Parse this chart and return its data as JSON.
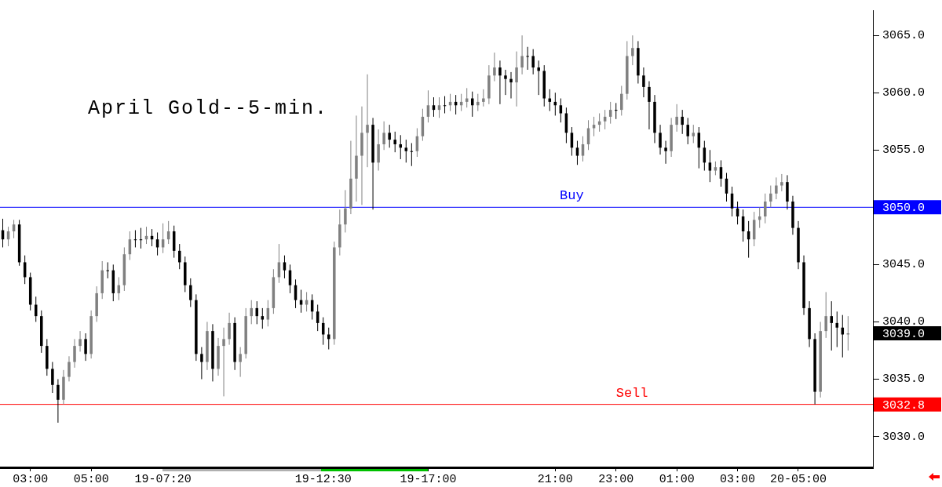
{
  "chart_data": {
    "type": "candlestick",
    "title": "April Gold--5-min.",
    "categories": [
      null,
      null,
      null,
      null,
      null,
      "03:00",
      null,
      null,
      null,
      null,
      null,
      null,
      null,
      null,
      null,
      null,
      "05:00",
      null,
      null,
      null,
      null,
      null,
      null,
      null,
      null,
      null,
      null,
      null,
      null,
      "19-07:20",
      null,
      null,
      null,
      null,
      null,
      null,
      null,
      null,
      null,
      null,
      null,
      null,
      null,
      null,
      null,
      null,
      null,
      null,
      null,
      null,
      null,
      null,
      null,
      null,
      null,
      null,
      null,
      null,
      "19-12:30",
      null,
      null,
      null,
      null,
      null,
      null,
      null,
      null,
      null,
      null,
      null,
      null,
      null,
      null,
      null,
      null,
      null,
      null,
      "19-17:00",
      null,
      null,
      null,
      null,
      null,
      null,
      null,
      null,
      null,
      null,
      null,
      null,
      null,
      null,
      null,
      null,
      null,
      null,
      null,
      null,
      null,
      null,
      "21:00",
      null,
      null,
      null,
      null,
      null,
      null,
      null,
      null,
      null,
      null,
      "23:00",
      null,
      null,
      null,
      null,
      null,
      null,
      null,
      null,
      null,
      null,
      "01:00",
      null,
      null,
      null,
      null,
      null,
      null,
      null,
      null,
      null,
      null,
      "03:00",
      null,
      null,
      null,
      null,
      null,
      null,
      null,
      null,
      null,
      null,
      "20-05:00",
      null,
      null,
      null,
      null,
      null,
      null,
      null,
      null,
      null,
      null,
      null,
      null,
      null
    ],
    "ohlc": [
      [
        3048.0,
        3049.0,
        3046.5,
        3047.2
      ],
      [
        3047.2,
        3048.3,
        3046.6,
        3047.9
      ],
      [
        3047.9,
        3048.9,
        3047.3,
        3048.5
      ],
      [
        3048.5,
        3048.9,
        3044.9,
        3045.2
      ],
      [
        3045.2,
        3045.8,
        3043.3,
        3043.9
      ],
      [
        3043.9,
        3044.3,
        3041.0,
        3041.5
      ],
      [
        3041.5,
        3042.2,
        3040.0,
        3040.5
      ],
      [
        3040.5,
        3041.0,
        3037.3,
        3037.9
      ],
      [
        3037.9,
        3038.5,
        3035.3,
        3035.9
      ],
      [
        3035.9,
        3036.5,
        3033.8,
        3034.5
      ],
      [
        3034.5,
        3035.0,
        3031.2,
        3033.2
      ],
      [
        3033.2,
        3035.8,
        3032.8,
        3035.2
      ],
      [
        3035.2,
        3037.0,
        3034.8,
        3036.5
      ],
      [
        3036.5,
        3038.5,
        3036.0,
        3037.9
      ],
      [
        3037.9,
        3039.2,
        3037.4,
        3038.5
      ],
      [
        3038.5,
        3039.0,
        3036.6,
        3037.2
      ],
      [
        3037.2,
        3041.0,
        3036.8,
        3040.5
      ],
      [
        3040.5,
        3043.1,
        3040.0,
        3042.5
      ],
      [
        3042.5,
        3045.3,
        3042.0,
        3044.5
      ],
      [
        3044.5,
        3045.2,
        3043.8,
        3044.5
      ],
      [
        3044.5,
        3045.0,
        3041.8,
        3042.5
      ],
      [
        3042.5,
        3043.9,
        3041.9,
        3043.2
      ],
      [
        3043.2,
        3046.5,
        3042.7,
        3045.9
      ],
      [
        3045.9,
        3047.9,
        3045.4,
        3047.2
      ],
      [
        3047.2,
        3048.0,
        3046.5,
        3047.2
      ],
      [
        3047.2,
        3048.2,
        3046.4,
        3047.2
      ],
      [
        3047.2,
        3048.3,
        3046.8,
        3047.5
      ],
      [
        3047.5,
        3048.1,
        3046.6,
        3047.2
      ],
      [
        3047.2,
        3047.8,
        3045.8,
        3046.5
      ],
      [
        3046.5,
        3048.6,
        3046.0,
        3047.2
      ],
      [
        3047.2,
        3048.8,
        3046.8,
        3047.9
      ],
      [
        3047.9,
        3048.4,
        3045.6,
        3046.2
      ],
      [
        3046.2,
        3046.8,
        3044.6,
        3045.2
      ],
      [
        3045.2,
        3045.7,
        3042.6,
        3043.2
      ],
      [
        3043.2,
        3043.8,
        3041.3,
        3041.9
      ],
      [
        3041.9,
        3042.4,
        3036.6,
        3037.2
      ],
      [
        3037.2,
        3037.8,
        3035.0,
        3036.5
      ],
      [
        3036.5,
        3040.0,
        3035.8,
        3039.2
      ],
      [
        3039.2,
        3039.8,
        3034.8,
        3035.9
      ],
      [
        3035.9,
        3038.6,
        3035.3,
        3037.9
      ],
      [
        3037.9,
        3039.5,
        3033.5,
        3038.5
      ],
      [
        3038.5,
        3040.8,
        3038.0,
        3039.9
      ],
      [
        3039.9,
        3040.4,
        3035.8,
        3036.5
      ],
      [
        3036.5,
        3037.8,
        3035.2,
        3037.2
      ],
      [
        3037.2,
        3041.2,
        3036.8,
        3040.5
      ],
      [
        3040.5,
        3041.9,
        3039.8,
        3041.2
      ],
      [
        3041.2,
        3041.8,
        3039.8,
        3040.5
      ],
      [
        3040.5,
        3041.2,
        3039.4,
        3040.2
      ],
      [
        3040.2,
        3041.9,
        3039.6,
        3041.2
      ],
      [
        3041.2,
        3044.6,
        3040.7,
        3043.9
      ],
      [
        3043.9,
        3046.8,
        3043.4,
        3045.2
      ],
      [
        3045.2,
        3045.8,
        3043.8,
        3044.5
      ],
      [
        3044.5,
        3045.0,
        3042.5,
        3043.2
      ],
      [
        3043.2,
        3043.7,
        3041.2,
        3041.9
      ],
      [
        3041.9,
        3042.8,
        3040.8,
        3041.5
      ],
      [
        3041.5,
        3042.6,
        3040.9,
        3041.9
      ],
      [
        3041.9,
        3042.4,
        3040.2,
        3040.9
      ],
      [
        3040.9,
        3041.5,
        3039.2,
        3039.9
      ],
      [
        3039.9,
        3040.4,
        3038.0,
        3038.9
      ],
      [
        3038.9,
        3039.5,
        3037.6,
        3038.5
      ],
      [
        3038.5,
        3047.0,
        3038.0,
        3046.5
      ],
      [
        3046.5,
        3049.8,
        3045.8,
        3048.5
      ],
      [
        3048.5,
        3051.5,
        3047.8,
        3049.9
      ],
      [
        3049.9,
        3055.8,
        3049.4,
        3052.5
      ],
      [
        3052.5,
        3058.0,
        3050.5,
        3054.5
      ],
      [
        3054.5,
        3058.8,
        3050.2,
        3056.5
      ],
      [
        3056.5,
        3061.6,
        3053.5,
        3057.2
      ],
      [
        3057.2,
        3057.8,
        3049.8,
        3053.9
      ],
      [
        3053.9,
        3056.8,
        3053.2,
        3055.5
      ],
      [
        3055.5,
        3057.5,
        3055.0,
        3056.5
      ],
      [
        3056.5,
        3057.2,
        3055.2,
        3055.9
      ],
      [
        3055.9,
        3056.6,
        3054.8,
        3055.5
      ],
      [
        3055.5,
        3056.3,
        3054.2,
        3055.2
      ],
      [
        3055.2,
        3055.9,
        3053.9,
        3054.9
      ],
      [
        3054.9,
        3055.6,
        3053.6,
        3054.9
      ],
      [
        3054.9,
        3056.9,
        3054.4,
        3056.2
      ],
      [
        3056.2,
        3058.6,
        3055.8,
        3057.9
      ],
      [
        3057.9,
        3060.2,
        3057.4,
        3058.9
      ],
      [
        3058.9,
        3059.6,
        3057.9,
        3058.5
      ],
      [
        3058.5,
        3059.6,
        3057.8,
        3058.9
      ],
      [
        3058.9,
        3059.7,
        3058.2,
        3058.9
      ],
      [
        3058.9,
        3059.9,
        3058.4,
        3059.2
      ],
      [
        3059.2,
        3059.8,
        3058.1,
        3058.9
      ],
      [
        3058.9,
        3059.9,
        3058.4,
        3059.2
      ],
      [
        3059.2,
        3060.4,
        3058.7,
        3059.5
      ],
      [
        3059.5,
        3060.1,
        3057.9,
        3058.9
      ],
      [
        3058.9,
        3059.9,
        3058.4,
        3059.2
      ],
      [
        3059.2,
        3060.3,
        3058.8,
        3059.5
      ],
      [
        3059.5,
        3062.4,
        3059.0,
        3061.5
      ],
      [
        3061.5,
        3063.5,
        3061.0,
        3062.2
      ],
      [
        3062.2,
        3062.8,
        3059.0,
        3061.5
      ],
      [
        3061.5,
        3062.0,
        3059.8,
        3061.2
      ],
      [
        3061.2,
        3061.8,
        3059.5,
        3060.9
      ],
      [
        3060.9,
        3063.6,
        3058.8,
        3062.2
      ],
      [
        3062.2,
        3065.0,
        3061.6,
        3063.2
      ],
      [
        3063.2,
        3064.0,
        3062.0,
        3063.2
      ],
      [
        3063.2,
        3063.8,
        3061.6,
        3062.2
      ],
      [
        3062.2,
        3062.8,
        3059.8,
        3061.9
      ],
      [
        3061.9,
        3062.4,
        3058.8,
        3059.5
      ],
      [
        3059.5,
        3060.3,
        3058.4,
        3059.2
      ],
      [
        3059.2,
        3060.0,
        3058.0,
        3058.9
      ],
      [
        3058.9,
        3059.5,
        3057.4,
        3058.2
      ],
      [
        3058.2,
        3058.7,
        3055.6,
        3056.5
      ],
      [
        3056.5,
        3057.0,
        3054.5,
        3055.2
      ],
      [
        3055.2,
        3055.8,
        3053.7,
        3054.5
      ],
      [
        3054.5,
        3056.2,
        3054.0,
        3055.5
      ],
      [
        3055.5,
        3057.6,
        3055.0,
        3056.9
      ],
      [
        3056.9,
        3057.9,
        3056.2,
        3057.2
      ],
      [
        3057.2,
        3058.2,
        3056.6,
        3057.5
      ],
      [
        3057.5,
        3058.5,
        3056.8,
        3057.9
      ],
      [
        3057.9,
        3059.2,
        3057.3,
        3058.5
      ],
      [
        3058.5,
        3059.1,
        3057.7,
        3058.5
      ],
      [
        3058.5,
        3060.6,
        3058.0,
        3059.9
      ],
      [
        3059.9,
        3064.5,
        3059.4,
        3063.2
      ],
      [
        3063.2,
        3065.0,
        3062.4,
        3063.9
      ],
      [
        3063.9,
        3064.5,
        3060.8,
        3061.5
      ],
      [
        3061.5,
        3062.2,
        3059.6,
        3060.5
      ],
      [
        3060.5,
        3061.0,
        3056.8,
        3059.2
      ],
      [
        3059.2,
        3059.8,
        3055.6,
        3056.5
      ],
      [
        3056.5,
        3057.2,
        3054.6,
        3055.2
      ],
      [
        3055.2,
        3055.8,
        3053.8,
        3054.9
      ],
      [
        3054.9,
        3057.8,
        3054.4,
        3057.2
      ],
      [
        3057.2,
        3059.0,
        3056.6,
        3057.9
      ],
      [
        3057.9,
        3058.5,
        3056.4,
        3057.2
      ],
      [
        3057.2,
        3057.8,
        3055.5,
        3056.2
      ],
      [
        3056.2,
        3057.2,
        3055.6,
        3056.5
      ],
      [
        3056.5,
        3057.0,
        3053.4,
        3055.2
      ],
      [
        3055.2,
        3055.8,
        3053.2,
        3053.9
      ],
      [
        3053.9,
        3055.0,
        3052.2,
        3053.2
      ],
      [
        3053.2,
        3054.0,
        3052.8,
        3053.5
      ],
      [
        3053.5,
        3054.1,
        3051.8,
        3052.5
      ],
      [
        3052.5,
        3053.0,
        3050.5,
        3051.2
      ],
      [
        3051.2,
        3051.8,
        3049.2,
        3049.9
      ],
      [
        3049.9,
        3050.5,
        3048.5,
        3049.2
      ],
      [
        3049.2,
        3049.8,
        3047.0,
        3047.9
      ],
      [
        3047.9,
        3048.8,
        3045.6,
        3047.2
      ],
      [
        3047.2,
        3049.6,
        3046.6,
        3048.9
      ],
      [
        3048.9,
        3050.0,
        3048.2,
        3049.2
      ],
      [
        3049.2,
        3051.2,
        3048.6,
        3050.5
      ],
      [
        3050.5,
        3051.9,
        3050.0,
        3051.2
      ],
      [
        3051.2,
        3052.6,
        3050.7,
        3051.9
      ],
      [
        3051.9,
        3052.9,
        3051.4,
        3052.2
      ],
      [
        3052.2,
        3052.8,
        3049.8,
        3050.5
      ],
      [
        3050.5,
        3051.0,
        3047.6,
        3048.2
      ],
      [
        3048.2,
        3048.8,
        3044.6,
        3045.2
      ],
      [
        3045.2,
        3045.8,
        3040.6,
        3041.2
      ],
      [
        3041.2,
        3041.8,
        3037.8,
        3038.5
      ],
      [
        3038.5,
        3039.0,
        3032.8,
        3033.9
      ],
      [
        3033.9,
        3040.0,
        3033.4,
        3039.2
      ],
      [
        3039.2,
        3042.6,
        3038.6,
        3040.5
      ],
      [
        3040.5,
        3041.8,
        3037.5,
        3039.9
      ],
      [
        3039.9,
        3040.9,
        3037.8,
        3039.5
      ],
      [
        3039.5,
        3040.6,
        3036.9,
        3038.9
      ],
      [
        3038.9,
        3040.5,
        3037.5,
        3039.0
      ],
      null,
      null,
      null,
      null
    ],
    "colors": [
      "#000000",
      "#808080",
      "#808080",
      "#000000",
      "#000000",
      "#000000",
      "#000000",
      "#000000",
      "#000000",
      "#000000",
      "#000000",
      "#808080",
      "#808080",
      "#808080",
      "#808080",
      "#000000",
      "#808080",
      "#808080",
      "#808080",
      "#000000",
      "#000000",
      "#808080",
      "#808080",
      "#808080",
      "#000000",
      "#000000",
      "#808080",
      "#000000",
      "#000000",
      "#808080",
      "#808080",
      "#000000",
      "#000000",
      "#000000",
      "#000000",
      "#000000",
      "#000000",
      "#808080",
      "#000000",
      "#808080",
      "#808080",
      "#808080",
      "#000000",
      "#808080",
      "#808080",
      "#808080",
      "#000000",
      "#000000",
      "#808080",
      "#808080",
      "#808080",
      "#000000",
      "#000000",
      "#000000",
      "#000000",
      "#808080",
      "#000000",
      "#000000",
      "#000000",
      "#000000",
      "#808080",
      "#808080",
      "#808080",
      "#808080",
      "#808080",
      "#808080",
      "#808080",
      "#000000",
      "#808080",
      "#808080",
      "#000000",
      "#000000",
      "#000000",
      "#000000",
      "#000000",
      "#808080",
      "#808080",
      "#808080",
      "#000000",
      "#808080",
      "#000000",
      "#808080",
      "#000000",
      "#808080",
      "#808080",
      "#000000",
      "#808080",
      "#808080",
      "#808080",
      "#808080",
      "#000000",
      "#000000",
      "#000000",
      "#808080",
      "#808080",
      "#000000",
      "#000000",
      "#000000",
      "#000000",
      "#000000",
      "#000000",
      "#000000",
      "#000000",
      "#000000",
      "#000000",
      "#808080",
      "#808080",
      "#808080",
      "#808080",
      "#808080",
      "#808080",
      "#000000",
      "#808080",
      "#808080",
      "#808080",
      "#000000",
      "#000000",
      "#000000",
      "#000000",
      "#000000",
      "#000000",
      "#808080",
      "#808080",
      "#000000",
      "#000000",
      "#808080",
      "#000000",
      "#000000",
      "#000000",
      "#808080",
      "#000000",
      "#000000",
      "#000000",
      "#000000",
      "#000000",
      "#000000",
      "#808080",
      "#808080",
      "#808080",
      "#808080",
      "#808080",
      "#808080",
      "#000000",
      "#000000",
      "#000000",
      "#000000",
      "#000000",
      "#000000",
      "#808080",
      "#808080",
      "#000000",
      "#000000",
      "#000000",
      "#808080",
      null,
      null,
      null,
      null
    ],
    "ylim": [
      3027.3,
      3067.2
    ],
    "yticks": [
      {
        "value": 3030,
        "label": "3030.0"
      },
      {
        "value": 3035,
        "label": "3035.0"
      },
      {
        "value": 3040,
        "label": "3040.0"
      },
      {
        "value": 3045,
        "label": "3045.0"
      },
      {
        "value": 3055,
        "label": "3055.0"
      },
      {
        "value": 3060,
        "label": "3060.0"
      },
      {
        "value": 3065,
        "label": "3065.0"
      }
    ],
    "ref_lines": [
      {
        "axis": "y",
        "value": 3050.0,
        "label": "3050.0",
        "color": "#0000ff"
      },
      {
        "axis": "y",
        "value": 3032.8,
        "label": "3032.8",
        "color": "#ff0000"
      }
    ],
    "annotations": [
      "Buy",
      "Sell",
      "3039.0"
    ]
  }
}
